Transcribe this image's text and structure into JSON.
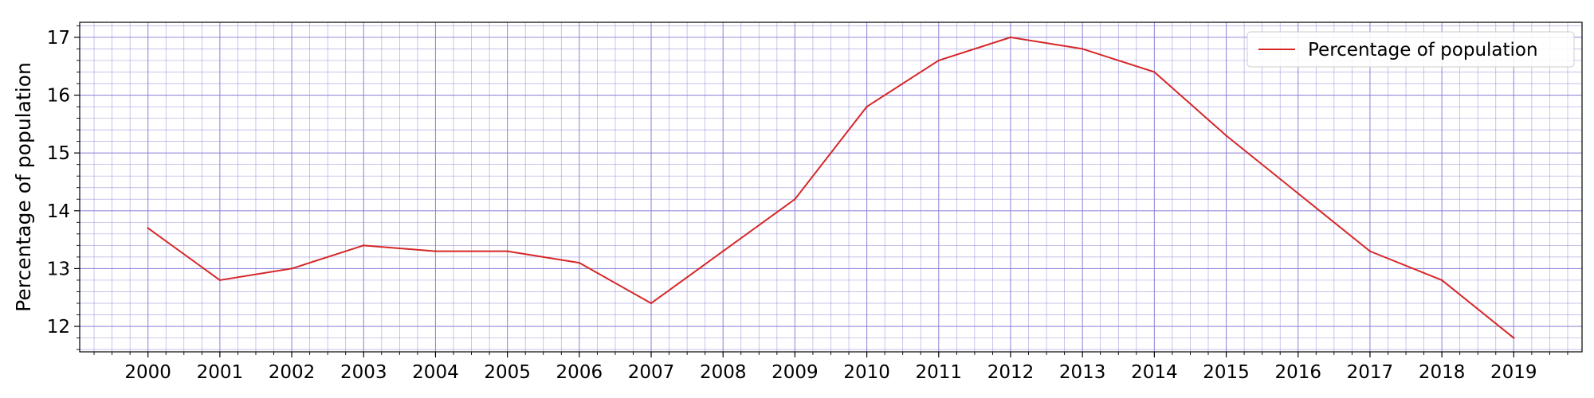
{
  "chart_data": {
    "type": "line",
    "x": [
      2000,
      2001,
      2002,
      2003,
      2004,
      2005,
      2006,
      2007,
      2008,
      2009,
      2010,
      2011,
      2012,
      2013,
      2014,
      2015,
      2016,
      2017,
      2018,
      2019
    ],
    "series": [
      {
        "name": "Percentage of population",
        "values": [
          13.7,
          12.8,
          13.0,
          13.4,
          13.3,
          13.3,
          13.1,
          12.4,
          13.3,
          14.2,
          15.8,
          16.6,
          17.0,
          16.8,
          16.4,
          15.3,
          14.3,
          13.3,
          12.8,
          11.8
        ],
        "color": "#d62728"
      }
    ],
    "x_tick_labels": [
      "2000",
      "2001",
      "2002",
      "2003",
      "2004",
      "2005",
      "2006",
      "2007",
      "2008",
      "2009",
      "2010",
      "2011",
      "2012",
      "2013",
      "2014",
      "2015",
      "2016",
      "2017",
      "2018",
      "2019"
    ],
    "y_ticks": [
      12,
      13,
      14,
      15,
      16,
      17
    ],
    "xlim": [
      1999.05,
      2019.95
    ],
    "ylim": [
      11.56,
      17.26
    ],
    "xlabel": "",
    "ylabel": "Percentage of population",
    "title": "",
    "grid": true,
    "grid_color": "#8a7fd6",
    "legend_position": "top-right"
  }
}
